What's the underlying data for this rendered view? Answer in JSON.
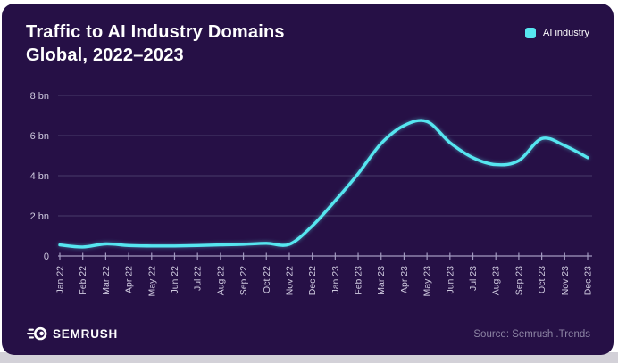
{
  "header": {
    "title_line1": "Traffic to AI Industry Domains",
    "title_line2": "Global, 2022–2023"
  },
  "legend": {
    "label": "AI industry",
    "swatch_icon": "rounded-square-icon",
    "color": "#57E6F0"
  },
  "footer": {
    "logo_text": "SEMRUSH",
    "logo_icon": "semrush-ball-icon",
    "source": "Source: Semrush .Trends"
  },
  "colors": {
    "card_bg": "#261046",
    "line": "#57E6F0",
    "axis_text": "#CFCADF",
    "gridline": "#483D6B",
    "axis_line": "#A29AC0",
    "source_text": "#8D85A4",
    "title_text": "#FFFFFF"
  },
  "chart_data": {
    "type": "line",
    "title": "Traffic to AI Industry Domains",
    "subtitle": "Global, 2022–2023",
    "xlabel": "",
    "ylabel": "",
    "unit": "bn",
    "ylim": [
      0,
      8
    ],
    "y_tick_values": [
      0,
      2,
      4,
      6,
      8
    ],
    "y_tick_labels": [
      "0",
      "2 bn",
      "4 bn",
      "6 bn",
      "8 bn"
    ],
    "grid": "horizontal",
    "legend_position": "top-right",
    "categories": [
      "Jan 22",
      "Feb 22",
      "Mar 22",
      "Apr 22",
      "May 22",
      "Jun 22",
      "Jul 22",
      "Aug 22",
      "Sep 22",
      "Oct 22",
      "Nov 22",
      "Dec 22",
      "Jan 23",
      "Feb 23",
      "Mar 23",
      "Apr 23",
      "May 23",
      "Jun 23",
      "Jul 23",
      "Aug 23",
      "Sep 23",
      "Oct 23",
      "Nov 23",
      "Dec 23"
    ],
    "series": [
      {
        "name": "AI industry",
        "values": [
          0.55,
          0.45,
          0.6,
          0.52,
          0.5,
          0.5,
          0.52,
          0.55,
          0.58,
          0.63,
          0.58,
          1.5,
          2.75,
          4.1,
          5.6,
          6.5,
          6.7,
          5.65,
          4.9,
          4.55,
          4.75,
          5.85,
          5.5,
          4.9
        ]
      }
    ]
  }
}
